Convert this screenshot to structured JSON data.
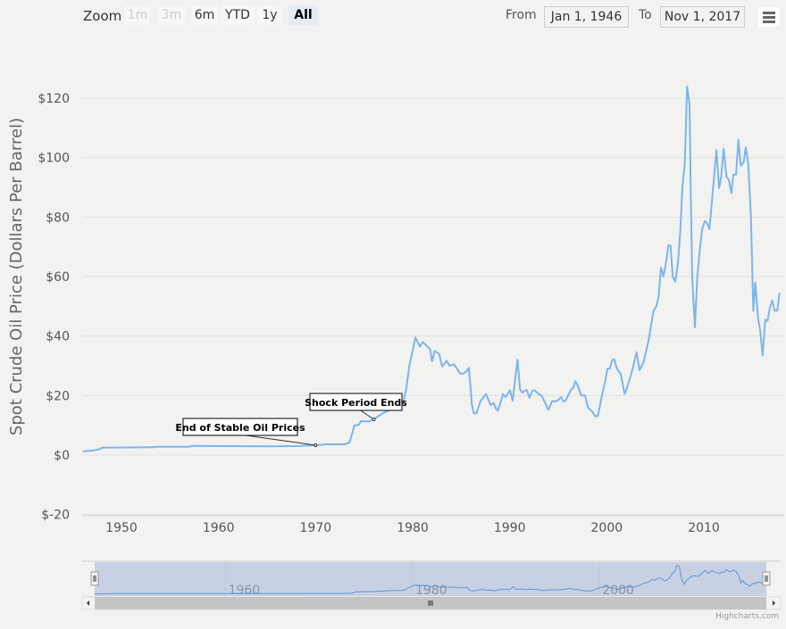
{
  "range_selector": {
    "zoom_label": "Zoom",
    "buttons": [
      {
        "label": "1m",
        "state": "disabled"
      },
      {
        "label": "3m",
        "state": "disabled"
      },
      {
        "label": "6m",
        "state": "normal"
      },
      {
        "label": "YTD",
        "state": "normal"
      },
      {
        "label": "1y",
        "state": "normal"
      },
      {
        "label": "All",
        "state": "active"
      }
    ],
    "from_label": "From",
    "from_value": "Jan 1, 1946",
    "to_label": "To",
    "to_value": "Nov 1, 2017"
  },
  "menu_icon": "hamburger-menu-icon",
  "credits": "Highcharts.com",
  "chart_data": {
    "type": "line",
    "title": "",
    "xlabel": "",
    "ylabel": "Spot Crude Oil Price (Dollars Per Barrel)",
    "xlim": [
      1946,
      2017.83
    ],
    "ylim": [
      -20,
      130
    ],
    "x_ticks": [
      "1950",
      "1960",
      "1970",
      "1980",
      "1990",
      "2000",
      "2010"
    ],
    "y_ticks": [
      "$-20",
      "$0",
      "$20",
      "$40",
      "$60",
      "$80",
      "$100",
      "$120"
    ],
    "y_tick_values": [
      -20,
      0,
      20,
      40,
      60,
      80,
      100,
      120
    ],
    "grid": true,
    "line_color": "#7cb5ec",
    "series": [
      {
        "x": [
          1946,
          1947,
          1947.7,
          1948,
          1953.3,
          1953.5,
          1957,
          1957.2,
          1960,
          1965,
          1968,
          1970,
          1970.5,
          1971,
          1973,
          1973.5,
          1974,
          1974.44,
          1974.66,
          1975.5,
          1976,
          1976.75,
          1977.2,
          1977.97,
          1978.74,
          1979.05,
          1979.35,
          1979.66,
          1980.28,
          1980.74,
          1981.04,
          1981.35,
          1981.8,
          1982.0,
          1982.27,
          1982.73,
          1983.04,
          1983.5,
          1983.8,
          1984.26,
          1984.87,
          1985.1,
          1985.5,
          1985.8,
          1986.1,
          1986.3,
          1986.56,
          1987.0,
          1987.55,
          1988.04,
          1988.34,
          1988.65,
          1988.8,
          1989.17,
          1989.32,
          1989.57,
          1990.03,
          1990.3,
          1990.8,
          1991.07,
          1991.32,
          1991.62,
          1991.78,
          1992.03,
          1992.33,
          1992.54,
          1993.0,
          1993.3,
          1993.98,
          1994.38,
          1994.69,
          1995.0,
          1995.3,
          1995.52,
          1995.76,
          1996.28,
          1996.53,
          1996.77,
          1997.0,
          1997.36,
          1997.76,
          1998.06,
          1998.52,
          1998.83,
          1999.08,
          1999.6,
          1999.85,
          2000.06,
          2000.3,
          2000.58,
          2000.77,
          2001.04,
          2001.44,
          2001.84,
          2002.0,
          2002.5,
          2003.07,
          2003.37,
          2003.8,
          2004.3,
          2004.82,
          2005.1,
          2005.33,
          2005.58,
          2005.83,
          2006.04,
          2006.35,
          2006.57,
          2006.8,
          2007.05,
          2007.33,
          2007.58,
          2007.8,
          2008.04,
          2008.28,
          2008.53,
          2008.65,
          2008.8,
          2009.08,
          2009.32,
          2009.57,
          2009.82,
          2010.1,
          2010.34,
          2010.58,
          2010.86,
          2011.3,
          2011.57,
          2011.78,
          2012.03,
          2012.34,
          2012.58,
          2012.83,
          2013.04,
          2013.32,
          2013.56,
          2013.8,
          2014.1,
          2014.32,
          2014.57,
          2014.85,
          2015.1,
          2015.3,
          2015.58,
          2015.8,
          2016.06,
          2016.32,
          2016.55,
          2016.8,
          2017.06,
          2017.3,
          2017.56,
          2017.8
        ],
        "y": [
          1.2,
          1.5,
          1.9,
          2.5,
          2.6,
          2.8,
          2.8,
          3.1,
          3.0,
          2.9,
          3.0,
          3.3,
          3.4,
          3.6,
          3.6,
          4.2,
          10,
          10.1,
          11.3,
          11.3,
          12,
          13.7,
          14.5,
          15.5,
          16.2,
          18,
          22.5,
          30,
          39.5,
          36.5,
          38,
          37,
          35.5,
          31.5,
          35,
          34,
          29.8,
          31.7,
          30,
          30.5,
          27.5,
          27.2,
          28,
          29.3,
          17,
          14,
          14,
          18.2,
          20.5,
          16.8,
          17.5,
          15.2,
          15,
          19,
          20.5,
          19.5,
          21.8,
          18.2,
          32,
          22,
          21,
          21.8,
          21.8,
          19.2,
          21.5,
          21.8,
          20.5,
          20,
          15.2,
          18.2,
          18,
          18.5,
          19.5,
          18,
          18.3,
          21.8,
          22.5,
          24.8,
          23.5,
          20,
          20,
          16,
          14.5,
          13,
          13.2,
          21.5,
          25,
          29,
          29,
          32,
          32.2,
          29,
          27.2,
          20.5,
          21.9,
          27,
          34.5,
          28.5,
          31.3,
          38.5,
          48.5,
          50,
          53,
          63,
          60,
          63.5,
          70.5,
          70.5,
          60,
          58.3,
          64.5,
          75.5,
          90.5,
          98,
          124,
          118,
          89.5,
          59.5,
          43,
          59.5,
          68.5,
          76,
          78.7,
          78,
          76,
          86.5,
          102.5,
          89.7,
          93.5,
          103,
          93.5,
          92.5,
          88,
          94.3,
          94.3,
          106,
          97.3,
          98.5,
          103.5,
          98,
          80.5,
          48.5,
          58,
          46,
          42,
          33.5,
          45.5,
          45,
          49.5,
          52,
          48.5,
          48.5,
          54.5
        ]
      }
    ],
    "annotations": [
      {
        "text": "End of Stable Oil Prices",
        "x": 1970,
        "y": 3.3
      },
      {
        "text": "Shock Period Ends",
        "x": 1976,
        "y": 12
      }
    ],
    "navigator": {
      "x_ticks": [
        "1960",
        "1980",
        "2000"
      ],
      "x_tick_values": [
        1960,
        1980,
        2000
      ],
      "selected_range": [
        1946,
        2017.83
      ]
    }
  }
}
